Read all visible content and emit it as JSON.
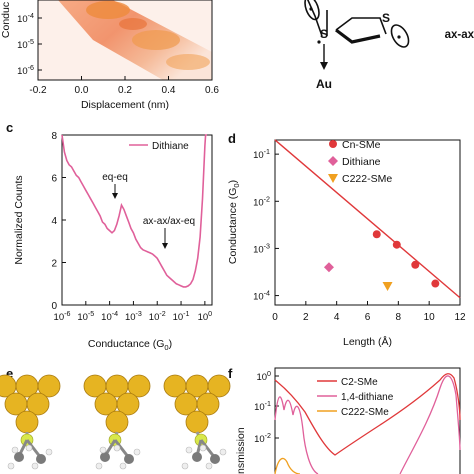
{
  "panel_labels": {
    "c": "c",
    "d": "d",
    "e": "e",
    "f": "f"
  },
  "molecule": {
    "atom_s": "S",
    "atom_au": "Au",
    "conformer_label": "ax-ax"
  },
  "colors": {
    "pink": "#e0609a",
    "red": "#e0383a",
    "orange": "#f0a020",
    "gold": "#e6b422",
    "sulfur": "#d8e84a",
    "carbon": "#7a7a7a"
  },
  "chart_data": [
    {
      "id": "panel-b",
      "type": "heatmap",
      "title": "",
      "xlabel": "Displacement (nm)",
      "ylabel": "Conduc",
      "xticks": [
        "-0.2",
        "0.0",
        "0.2",
        "0.4",
        "0.6"
      ],
      "yticks": [
        "10^-4",
        "10^-5",
        "10^-6"
      ],
      "xlim": [
        -0.2,
        0.6
      ],
      "ylog": true
    },
    {
      "id": "panel-c",
      "type": "line",
      "xlabel": "Conductance (G",
      "xlabel_sub": "0",
      "ylabel": "Normalized Counts",
      "xlog": true,
      "xlim_exp": [
        -6,
        0.3
      ],
      "ylim": [
        0,
        8
      ],
      "yticks": [
        "0",
        "2",
        "4",
        "6",
        "8"
      ],
      "xticks": [
        "10^-6",
        "10^-5",
        "10^-4",
        "10^-3",
        "10^-2",
        "10^-1",
        "10^0"
      ],
      "legend": [
        "Dithiane"
      ],
      "annotations": [
        "eq-eq",
        "ax-ax/ax-eq"
      ],
      "series": [
        {
          "name": "Dithiane",
          "log_x": [
            -6.0,
            -5.9,
            -5.8,
            -5.7,
            -5.6,
            -5.5,
            -5.4,
            -5.3,
            -5.2,
            -5.1,
            -5.0,
            -4.9,
            -4.8,
            -4.7,
            -4.6,
            -4.5,
            -4.4,
            -4.3,
            -4.2,
            -4.1,
            -4.0,
            -3.9,
            -3.8,
            -3.7,
            -3.6,
            -3.5,
            -3.4,
            -3.3,
            -3.2,
            -3.1,
            -3.0,
            -2.9,
            -2.8,
            -2.7,
            -2.6,
            -2.5,
            -2.4,
            -2.3,
            -2.2,
            -2.1,
            -2.0,
            -1.9,
            -1.8,
            -1.7,
            -1.6,
            -1.5,
            -1.4,
            -1.3,
            -1.2,
            -1.1,
            -1.0,
            -0.9,
            -0.8,
            -0.7,
            -0.6,
            -0.5,
            -0.4,
            -0.3,
            -0.2,
            -0.1,
            0.0,
            0.03,
            0.06,
            0.09
          ],
          "values": [
            8.0,
            7.2,
            6.8,
            6.6,
            6.5,
            6.3,
            6.1,
            6.0,
            5.8,
            5.6,
            5.4,
            5.2,
            5.0,
            4.8,
            4.6,
            4.4,
            4.2,
            3.9,
            3.8,
            3.6,
            3.5,
            3.4,
            3.5,
            3.8,
            4.2,
            4.7,
            4.5,
            4.2,
            3.9,
            3.6,
            3.4,
            3.1,
            2.9,
            2.7,
            2.6,
            2.55,
            2.5,
            2.45,
            2.4,
            2.3,
            2.2,
            2.0,
            1.8,
            1.6,
            1.4,
            1.3,
            1.2,
            1.1,
            1.0,
            0.95,
            0.9,
            0.85,
            0.85,
            0.9,
            1.0,
            1.2,
            1.6,
            2.2,
            3.2,
            5.0,
            7.5,
            8.0,
            8.0,
            8.0
          ]
        }
      ]
    },
    {
      "id": "panel-d",
      "type": "scatter",
      "xlabel": "Length (Å)",
      "ylabel": "Conductance (G",
      "ylabel_sub": "0",
      "ylabel_end": ")",
      "xlim": [
        0,
        12
      ],
      "ylog": true,
      "ylim_exp": [
        -4.2,
        -0.7
      ],
      "xticks": [
        "0",
        "2",
        "4",
        "6",
        "8",
        "10",
        "12"
      ],
      "yticks": [
        "10^-1",
        "10^-2",
        "10^-3",
        "10^-4"
      ],
      "legend": [
        "Cn-SMe",
        "Dithiane",
        "C222-SMe"
      ],
      "series": [
        {
          "name": "Cn-SMe",
          "marker": "circle",
          "x": [
            6.6,
            7.9,
            9.1,
            10.4
          ],
          "y": [
            0.002,
            0.0012,
            0.00045,
            0.00018
          ]
        },
        {
          "name": "Dithiane",
          "marker": "diamond",
          "x": [
            3.5
          ],
          "y": [
            0.0004
          ]
        },
        {
          "name": "C222-SMe",
          "marker": "triangle-down",
          "x": [
            7.3
          ],
          "y": [
            0.00016
          ]
        }
      ],
      "fit_line": {
        "x": [
          0,
          12
        ],
        "y": [
          0.2,
          9e-05
        ]
      }
    },
    {
      "id": "panel-f",
      "type": "line",
      "ylabel": "nsmission",
      "ylog": true,
      "yticks": [
        "10^0",
        "10^-1",
        "10^-2"
      ],
      "legend": [
        "C2-SMe",
        "1,4-dithiane",
        "C222-SMe"
      ]
    }
  ]
}
